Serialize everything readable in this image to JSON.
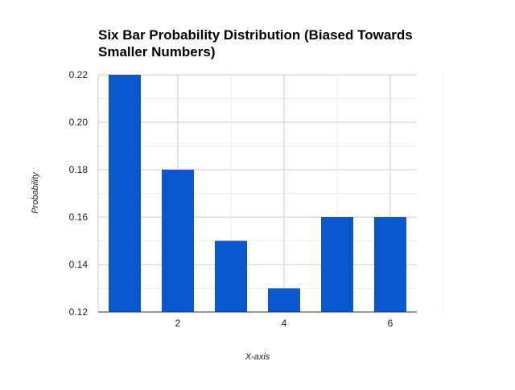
{
  "chart_data": {
    "type": "bar",
    "title": "Six Bar Probability Distribution (Biased Towards Smaller Numbers)",
    "xlabel": "X-axis",
    "ylabel": "Probability",
    "x": [
      1,
      2,
      3,
      4,
      5,
      6
    ],
    "values": [
      0.22,
      0.18,
      0.15,
      0.13,
      0.16,
      0.16
    ],
    "x_ticks": [
      2,
      4,
      6
    ],
    "x_tick_labels": [
      "2",
      "4",
      "6"
    ],
    "y_ticks": [
      0.12,
      0.14,
      0.16,
      0.18,
      0.2,
      0.22
    ],
    "y_tick_labels": [
      "0.12",
      "0.14",
      "0.16",
      "0.18",
      "0.20",
      "0.22"
    ],
    "xlim": [
      0.5,
      6.5
    ],
    "ylim": [
      0.12,
      0.22
    ],
    "grid": true,
    "legend": "none",
    "bar_color": "#0b57d0"
  }
}
